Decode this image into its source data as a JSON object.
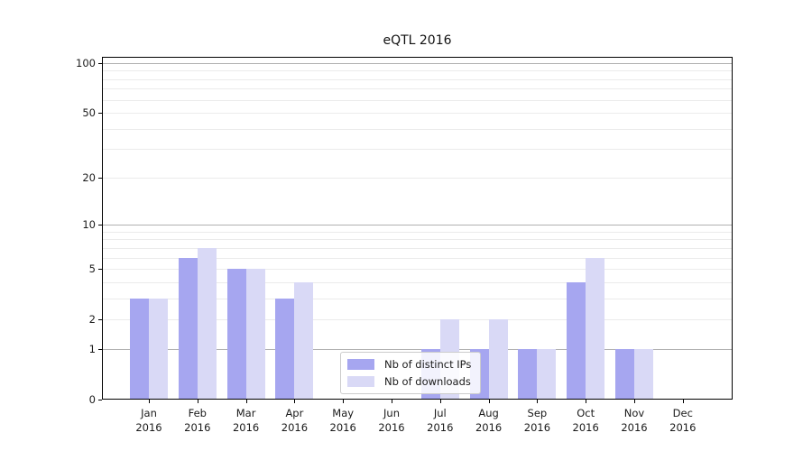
{
  "chart_data": {
    "type": "bar",
    "title": "eQTL 2016",
    "categories": [
      "Jan",
      "Feb",
      "Mar",
      "Apr",
      "May",
      "Jun",
      "Jul",
      "Aug",
      "Sep",
      "Oct",
      "Nov",
      "Dec"
    ],
    "year_label": "2016",
    "series": [
      {
        "name": "Nb of distinct IPs",
        "color": "#a6a6f0",
        "values": [
          3,
          6,
          5,
          3,
          0,
          0,
          1,
          1,
          1,
          4,
          1,
          0
        ]
      },
      {
        "name": "Nb of downloads",
        "color": "#d9d9f6",
        "values": [
          3,
          7,
          5,
          4,
          0,
          0,
          2,
          2,
          1,
          6,
          1,
          0
        ]
      }
    ],
    "y_axis": {
      "scale": "log1p",
      "ticks": [
        0,
        1,
        2,
        5,
        10,
        20,
        50,
        100
      ],
      "max": 109,
      "major_gridlines": [
        1,
        10,
        100
      ],
      "minor_gridlines": [
        2,
        3,
        4,
        5,
        6,
        7,
        8,
        9,
        20,
        30,
        40,
        50,
        60,
        70,
        80,
        90
      ]
    },
    "legend": {
      "position": "lower-center"
    },
    "colors": {
      "major_grid": "#b0b0b0",
      "minor_grid": "#ebebeb",
      "spine": "#000000",
      "text": "#1a1a1a",
      "background": "#ffffff"
    }
  }
}
